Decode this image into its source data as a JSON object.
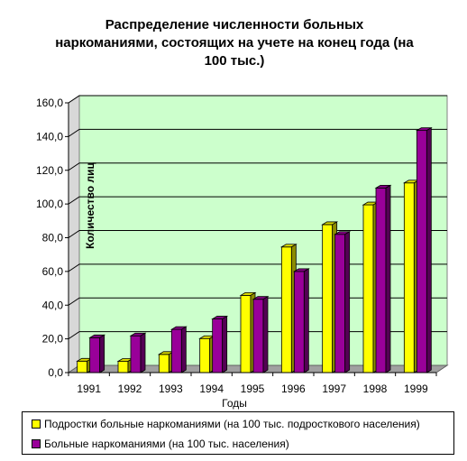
{
  "chart_data": {
    "type": "bar",
    "title_lines": [
      "Распределение численности больных",
      "наркоманиями, состоящих на учете на конец года (на",
      "100 тыс.)"
    ],
    "xlabel": "Годы",
    "ylabel": "Количество лиц",
    "categories": [
      "1991",
      "1992",
      "1993",
      "1994",
      "1995",
      "1996",
      "1997",
      "1998",
      "1999"
    ],
    "series": [
      {
        "name": "Подростки больные наркоманиями (на 100 тыс. подросткового населения)",
        "color": "#FFFF00",
        "values": [
          6.8,
          6.7,
          10.8,
          20.2,
          45.8,
          74.5,
          87.8,
          99.5,
          112.5
        ]
      },
      {
        "name": "Больные наркоманиями (на 100 тыс. населения)",
        "color": "#990099",
        "values": [
          20.7,
          21.8,
          25.6,
          31.8,
          43.5,
          60.0,
          82.0,
          109.5,
          143.6
        ]
      }
    ],
    "ylim": [
      0,
      160
    ],
    "yticks": [
      "0,0",
      "20,0",
      "40,0",
      "60,0",
      "80,0",
      "100,0",
      "120,0",
      "140,0",
      "160,0"
    ],
    "grid": true,
    "plot_background": "#CCFFCC",
    "legend_position": "bottom"
  }
}
